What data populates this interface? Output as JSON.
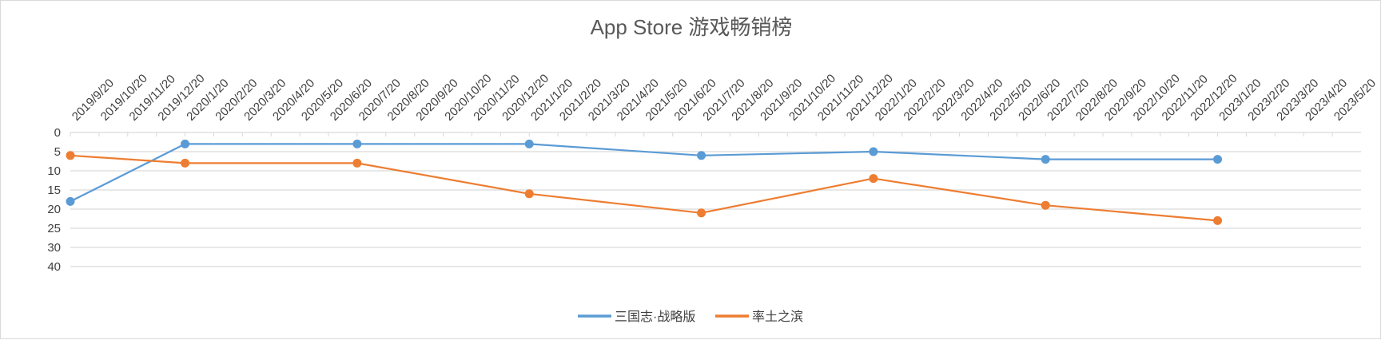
{
  "chart_data": {
    "type": "line",
    "title": "App Store 游戏畅销榜",
    "x": [
      "2019/9/20",
      "2019/10/20",
      "2019/11/20",
      "2019/12/20",
      "2020/1/20",
      "2020/2/20",
      "2020/3/20",
      "2020/4/20",
      "2020/5/20",
      "2020/6/20",
      "2020/7/20",
      "2020/8/20",
      "2020/9/20",
      "2020/10/20",
      "2020/11/20",
      "2020/12/20",
      "2021/1/20",
      "2021/2/20",
      "2021/3/20",
      "2021/4/20",
      "2021/5/20",
      "2021/6/20",
      "2021/7/20",
      "2021/8/20",
      "2021/9/20",
      "2021/10/20",
      "2021/11/20",
      "2021/12/20",
      "2022/1/20",
      "2022/2/20",
      "2022/3/20",
      "2022/4/20",
      "2022/5/20",
      "2022/6/20",
      "2022/7/20",
      "2022/8/20",
      "2022/9/20",
      "2022/10/20",
      "2022/11/20",
      "2022/12/20",
      "2023/1/20",
      "2023/2/20",
      "2023/3/20",
      "2023/4/20",
      "2023/5/20"
    ],
    "y_ticks": [
      0,
      5,
      10,
      15,
      20,
      25,
      30,
      40
    ],
    "y_inverted": true,
    "grid": true,
    "legend_position": "bottom",
    "series": [
      {
        "name": "三国志·战略版",
        "color": "#5b9bd5",
        "points": [
          {
            "x": "2019/9/20",
            "y": 18
          },
          {
            "x": "2020/1/20",
            "y": 3
          },
          {
            "x": "2020/7/20",
            "y": 3
          },
          {
            "x": "2021/1/20",
            "y": 3
          },
          {
            "x": "2021/7/20",
            "y": 6
          },
          {
            "x": "2022/1/20",
            "y": 5
          },
          {
            "x": "2022/7/20",
            "y": 7
          },
          {
            "x": "2023/1/20",
            "y": 7
          }
        ]
      },
      {
        "name": "率土之滨",
        "color": "#ed7d31",
        "points": [
          {
            "x": "2019/9/20",
            "y": 6
          },
          {
            "x": "2020/1/20",
            "y": 8
          },
          {
            "x": "2020/7/20",
            "y": 8
          },
          {
            "x": "2021/1/20",
            "y": 16
          },
          {
            "x": "2021/7/20",
            "y": 21
          },
          {
            "x": "2022/1/20",
            "y": 12
          },
          {
            "x": "2022/7/20",
            "y": 19
          },
          {
            "x": "2023/1/20",
            "y": 23
          }
        ]
      }
    ]
  }
}
